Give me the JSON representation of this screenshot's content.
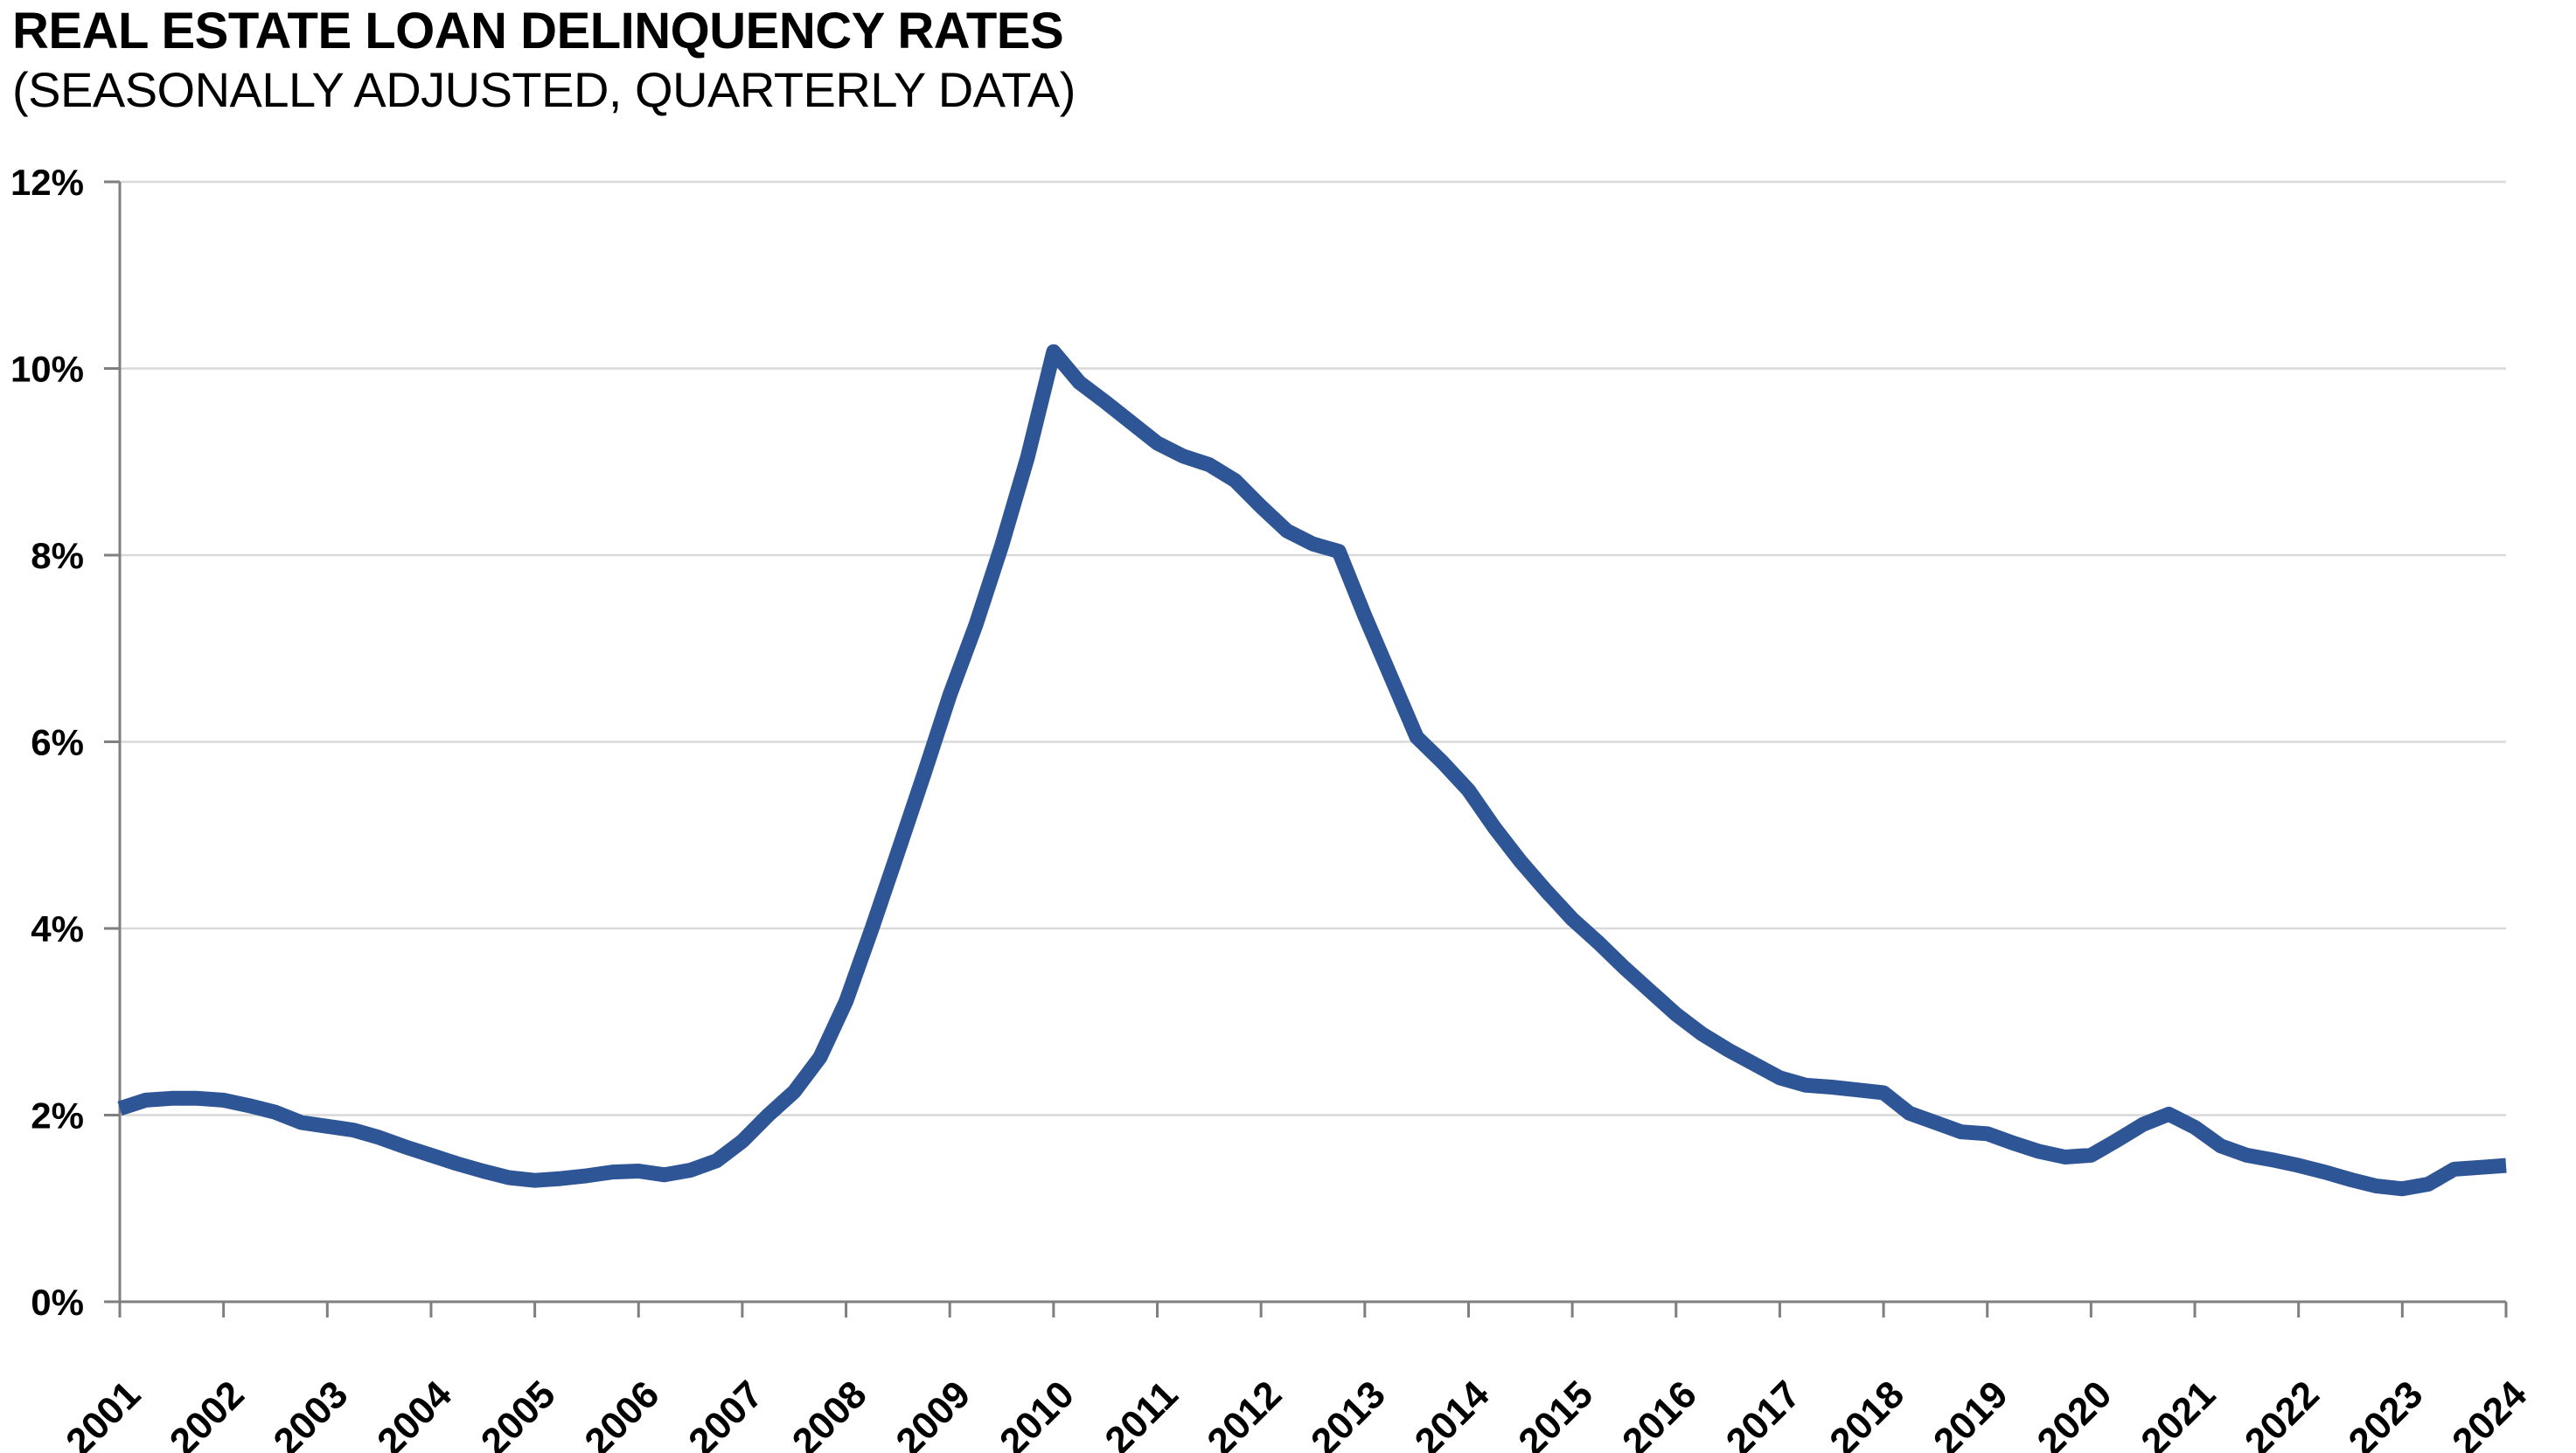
{
  "title": "REAL ESTATE LOAN DELINQUENCY RATES",
  "subtitle": "(SEASONALLY ADJUSTED, QUARTERLY DATA)",
  "chart_data": {
    "type": "line",
    "series_name": "Real estate loan delinquency rate",
    "frequency": "quarterly",
    "start_period": "2001 Q1",
    "end_period": "2024 Q1",
    "x_tick_labels": [
      "2001",
      "2002",
      "2003",
      "2004",
      "2005",
      "2006",
      "2007",
      "2008",
      "2009",
      "2010",
      "2011",
      "2012",
      "2013",
      "2014",
      "2015",
      "2016",
      "2017",
      "2018",
      "2019",
      "2020",
      "2021",
      "2022",
      "2023",
      "2024"
    ],
    "y_tick_labels": [
      "0%",
      "2%",
      "4%",
      "6%",
      "8%",
      "10%",
      "12%"
    ],
    "ylim": [
      0,
      12
    ],
    "y_tick_step": 2,
    "grid": "horizontal",
    "legend": "none",
    "values": [
      2.07,
      2.16,
      2.18,
      2.18,
      2.16,
      2.1,
      2.03,
      1.92,
      1.88,
      1.84,
      1.76,
      1.66,
      1.57,
      1.48,
      1.4,
      1.33,
      1.3,
      1.32,
      1.35,
      1.39,
      1.4,
      1.36,
      1.41,
      1.51,
      1.72,
      2.0,
      2.25,
      2.62,
      3.22,
      4.0,
      4.82,
      5.65,
      6.5,
      7.25,
      8.1,
      9.05,
      10.18,
      9.85,
      9.64,
      9.42,
      9.2,
      9.06,
      8.97,
      8.8,
      8.52,
      8.26,
      8.12,
      8.04,
      7.35,
      6.7,
      6.05,
      5.78,
      5.48,
      5.08,
      4.72,
      4.4,
      4.1,
      3.85,
      3.58,
      3.33,
      3.08,
      2.87,
      2.7,
      2.55,
      2.4,
      2.32,
      2.3,
      2.27,
      2.24,
      2.02,
      1.92,
      1.82,
      1.8,
      1.7,
      1.61,
      1.55,
      1.57,
      1.73,
      1.9,
      2.01,
      1.87,
      1.67,
      1.57,
      1.52,
      1.46,
      1.39,
      1.31,
      1.24,
      1.21,
      1.26,
      1.42,
      1.44,
      1.46
    ],
    "peak": {
      "period": "2010 Q1",
      "value": 10.18
    },
    "line_color": "#2E5595",
    "gridline_color": "#D9D9D9",
    "axis_color": "#7F7F7F",
    "text_color": "#000000",
    "background_color": "#FFFFFF"
  }
}
